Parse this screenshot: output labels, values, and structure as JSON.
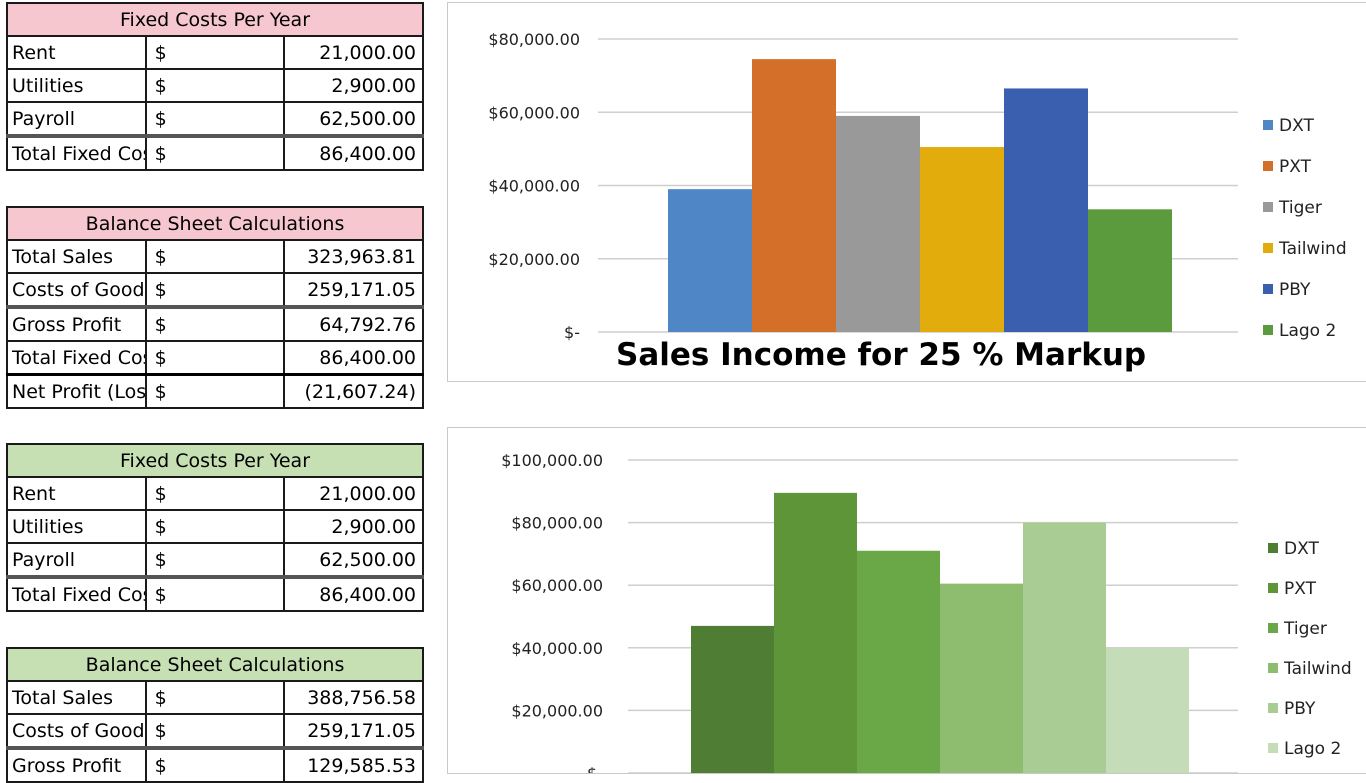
{
  "tables": [
    {
      "theme": "pink",
      "title": "Fixed Costs Per Year",
      "rows": [
        {
          "label": "Rent",
          "currency": "$",
          "value": "21,000.00"
        },
        {
          "label": "Utilities",
          "currency": "$",
          "value": "2,900.00"
        },
        {
          "label": "Payroll",
          "currency": "$",
          "value": "62,500.00"
        },
        {
          "label": "Total Fixed Costs",
          "currency": "$",
          "value": "86,400.00"
        }
      ]
    },
    {
      "theme": "pink",
      "title": "Balance Sheet Calculations",
      "rows": [
        {
          "label": "Total Sales",
          "currency": "$",
          "value": "323,963.81"
        },
        {
          "label": "Costs of Goods Sold",
          "currency": "$",
          "value": "259,171.05"
        },
        {
          "label": "Gross Profit",
          "currency": "$",
          "value": "64,792.76"
        },
        {
          "label": "Total Fixed Costs",
          "currency": "$",
          "value": "86,400.00"
        },
        {
          "label": "Net Profit (Loss)",
          "currency": "$",
          "value": "(21,607.24)"
        }
      ]
    },
    {
      "theme": "green",
      "title": "Fixed Costs Per Year",
      "rows": [
        {
          "label": "Rent",
          "currency": "$",
          "value": "21,000.00"
        },
        {
          "label": "Utilities",
          "currency": "$",
          "value": "2,900.00"
        },
        {
          "label": "Payroll",
          "currency": "$",
          "value": "62,500.00"
        },
        {
          "label": "Total Fixed Costs",
          "currency": "$",
          "value": "86,400.00"
        }
      ]
    },
    {
      "theme": "green",
      "title": "Balance Sheet Calculations",
      "rows": [
        {
          "label": "Total Sales",
          "currency": "$",
          "value": "388,756.58"
        },
        {
          "label": "Costs of Goods Sold",
          "currency": "$",
          "value": "259,171.05"
        },
        {
          "label": "Gross Profit",
          "currency": "$",
          "value": "129,585.53"
        }
      ]
    }
  ],
  "chart_data": [
    {
      "type": "bar",
      "title": "Sales Income for 25 % Markup",
      "categories": [
        "DXT",
        "PXT",
        "Tiger",
        "Tailwind",
        "PBY",
        "Lago 2"
      ],
      "values": [
        39000,
        74500,
        59000,
        50500,
        66500,
        33500
      ],
      "colors": [
        "#4f86c6",
        "#d46f2a",
        "#999999",
        "#e2ac0c",
        "#3a5fae",
        "#5c9a3e"
      ],
      "ylim": [
        0,
        80000
      ],
      "yticks": [
        0,
        20000,
        40000,
        60000,
        80000
      ],
      "ytick_labels": [
        "$-",
        "$20,000.00",
        "$40,000.00",
        "$60,000.00",
        "$80,000.00"
      ],
      "legend_position": "right",
      "grid": true
    },
    {
      "type": "bar",
      "title": "",
      "categories": [
        "DXT",
        "PXT",
        "Tiger",
        "Tailwind",
        "PBY",
        "Lago 2"
      ],
      "values": [
        47000,
        89500,
        71000,
        60500,
        80000,
        40000
      ],
      "colors": [
        "#4f7d33",
        "#5d9538",
        "#6aa847",
        "#8fbd70",
        "#a9cc95",
        "#c5dcb8"
      ],
      "ylim": [
        0,
        100000
      ],
      "yticks": [
        0,
        20000,
        40000,
        60000,
        80000,
        100000
      ],
      "ytick_labels": [
        "$-",
        "$20,000.00",
        "$40,000.00",
        "$60,000.00",
        "$80,000.00",
        "$100,000.00"
      ],
      "legend_position": "right",
      "grid": true
    }
  ]
}
